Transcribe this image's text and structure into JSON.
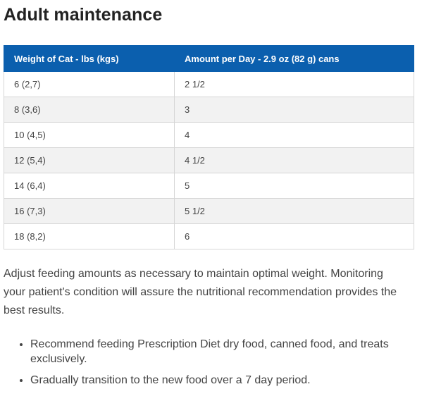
{
  "heading": "Adult maintenance",
  "table": {
    "headers": [
      "Weight of Cat - lbs (kgs)",
      "Amount per Day - 2.9 oz (82 g) cans"
    ],
    "rows": [
      [
        "6 (2,7)",
        "2 1/2"
      ],
      [
        "8 (3,6)",
        "3"
      ],
      [
        "10 (4,5)",
        "4"
      ],
      [
        "12 (5,4)",
        "4 1/2"
      ],
      [
        "14 (6,4)",
        "5"
      ],
      [
        "16 (7,3)",
        "5 1/2"
      ],
      [
        "18 (8,2)",
        "6"
      ]
    ]
  },
  "paragraph": "Adjust feeding amounts as necessary to maintain optimal weight. Monitoring your patient's condition will assure the nutritional recommendation provides the best results.",
  "bullets": [
    "Recommend feeding Prescription Diet dry food, canned food, and treats exclusively.",
    "Gradually transition to the new food over a 7 day period."
  ],
  "colors": {
    "header_bg": "#0b5fae",
    "header_text": "#ffffff",
    "stripe": "#f2f2f2",
    "border": "#d6d6d6"
  }
}
